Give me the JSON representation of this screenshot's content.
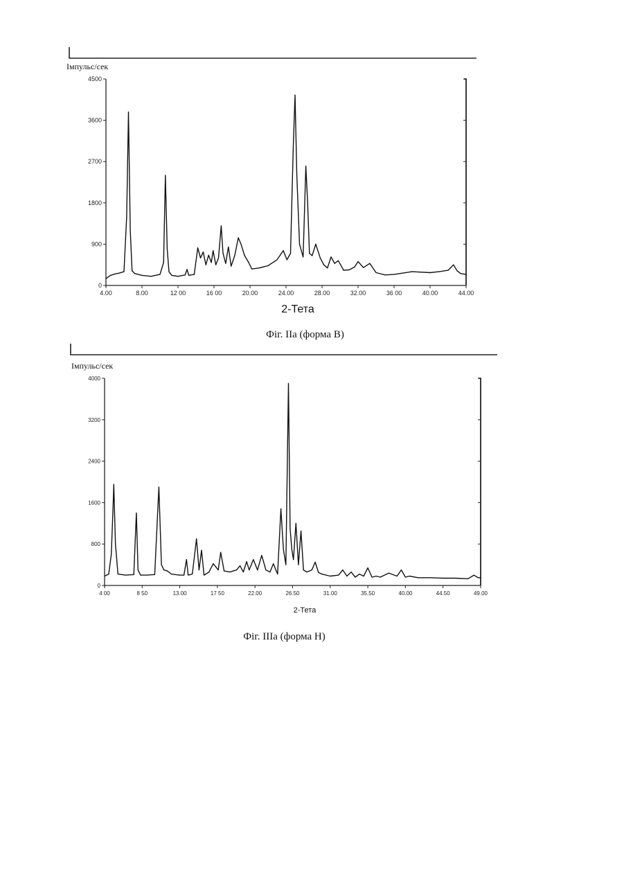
{
  "figures": [
    {
      "caption": "Фіг. IIа (форма B)",
      "ylabel": "Імпульс/сек",
      "xlabel": "2-Тета"
    },
    {
      "caption": "Фіг. IIIа (форма H)",
      "ylabel": "Імпульс/сек",
      "xlabel": "2-Тета"
    }
  ],
  "chart_data": [
    {
      "type": "line",
      "title": "",
      "xlabel": "2-Тета",
      "ylabel": "Імпульс/сек",
      "xlim": [
        4.0,
        44.0
      ],
      "ylim": [
        0,
        4500
      ],
      "x_tick_labels": [
        "4.00",
        "8.00",
        "12 00",
        "16 00",
        "20.00",
        "24.00",
        "28.00",
        "32.00",
        "36 00",
        "40.00",
        "44.00"
      ],
      "y_tick_labels": [
        "0",
        "900",
        "1800",
        "2700",
        "3600",
        "4500"
      ],
      "grid": false,
      "series": [
        {
          "x": [
            4.0,
            4.5,
            5.0,
            5.5,
            6.0,
            6.3,
            6.5,
            6.7,
            6.9,
            7.2,
            8.0,
            9.0,
            10.0,
            10.4,
            10.6,
            10.8,
            11.0,
            11.3,
            12.0,
            12.8,
            13.0,
            13.2,
            13.8,
            14.2,
            14.5,
            14.8,
            15.1,
            15.4,
            15.7,
            15.9,
            16.2,
            16.5,
            16.8,
            17.0,
            17.3,
            17.6,
            17.9,
            18.3,
            18.7,
            19.0,
            19.4,
            19.8,
            20.2,
            21.0,
            22.0,
            23.0,
            23.7,
            24.1,
            24.5,
            24.8,
            25.0,
            25.2,
            25.5,
            25.9,
            26.2,
            26.4,
            26.6,
            26.9,
            27.3,
            27.8,
            28.2,
            28.6,
            29.0,
            29.4,
            29.8,
            30.4,
            31.0,
            31.6,
            32.0,
            32.6,
            33.3,
            34.0,
            35.0,
            36.0,
            38.0,
            40.0,
            41.0,
            42.0,
            42.6,
            43.0,
            43.4,
            44.0
          ],
          "y": [
            150,
            220,
            250,
            270,
            300,
            1500,
            3780,
            1200,
            320,
            260,
            220,
            200,
            240,
            500,
            2400,
            800,
            300,
            220,
            200,
            230,
            350,
            220,
            240,
            820,
            600,
            730,
            450,
            660,
            500,
            760,
            450,
            600,
            1300,
            700,
            480,
            840,
            420,
            650,
            1040,
            900,
            650,
            520,
            360,
            380,
            430,
            560,
            760,
            560,
            700,
            3000,
            4150,
            2400,
            900,
            620,
            2600,
            1800,
            700,
            650,
            900,
            600,
            450,
            380,
            620,
            480,
            540,
            330,
            340,
            400,
            520,
            390,
            480,
            280,
            230,
            240,
            300,
            280,
            300,
            330,
            450,
            320,
            260,
            240
          ]
        }
      ]
    },
    {
      "type": "line",
      "title": "",
      "xlabel": "2-Тета",
      "ylabel": "Імпульс/сек",
      "xlim": [
        4.0,
        49.0
      ],
      "ylim": [
        0,
        4000
      ],
      "x_tick_labels": [
        "4 00",
        "8 50",
        "13.00",
        "17 50",
        "22.00",
        "26.50",
        "31.00",
        "35.50",
        "40.00",
        "44.50",
        "49.00"
      ],
      "y_tick_labels": [
        "0",
        "800",
        "1600",
        "2400",
        "3200",
        "4000"
      ],
      "grid": false,
      "series": [
        {
          "x": [
            4.0,
            4.5,
            4.8,
            5.0,
            5.1,
            5.3,
            5.6,
            6.5,
            7.5,
            7.8,
            8.0,
            8.3,
            9.0,
            10.0,
            10.5,
            10.8,
            11.1,
            11.5,
            12.0,
            13.0,
            13.5,
            13.8,
            14.0,
            14.5,
            15.0,
            15.3,
            15.6,
            15.9,
            16.5,
            17.0,
            17.6,
            17.9,
            18.3,
            19.0,
            19.8,
            20.2,
            20.6,
            21.0,
            21.3,
            21.8,
            22.3,
            22.8,
            23.3,
            23.8,
            24.2,
            24.7,
            25.1,
            25.4,
            25.7,
            26.0,
            26.2,
            26.4,
            26.6,
            26.9,
            27.2,
            27.5,
            27.8,
            28.2,
            28.5,
            28.8,
            29.2,
            29.6,
            30.0,
            31.0,
            32.0,
            32.5,
            33.0,
            33.5,
            34.0,
            34.5,
            35.0,
            35.5,
            36.0,
            36.5,
            37.0,
            38.0,
            39.0,
            39.5,
            40.0,
            40.5,
            41.5,
            43.0,
            44.5,
            46.0,
            47.5,
            48.2,
            48.7,
            49.0
          ],
          "y": [
            180,
            220,
            600,
            1450,
            1950,
            800,
            220,
            200,
            210,
            1400,
            300,
            200,
            200,
            210,
            1900,
            400,
            300,
            280,
            220,
            200,
            200,
            500,
            200,
            220,
            900,
            300,
            680,
            200,
            260,
            420,
            300,
            640,
            280,
            260,
            300,
            380,
            260,
            460,
            300,
            500,
            300,
            580,
            300,
            260,
            420,
            220,
            1480,
            700,
            400,
            3900,
            1100,
            700,
            500,
            1200,
            400,
            1050,
            300,
            260,
            280,
            300,
            450,
            250,
            220,
            180,
            200,
            300,
            180,
            260,
            160,
            220,
            180,
            340,
            160,
            180,
            160,
            240,
            180,
            300,
            160,
            180,
            150,
            150,
            140,
            140,
            130,
            200,
            150,
            150
          ]
        }
      ]
    }
  ]
}
